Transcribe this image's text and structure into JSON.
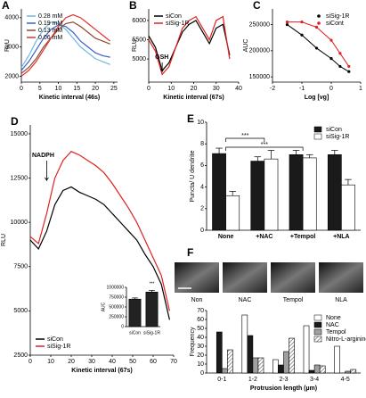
{
  "chart_data": [
    {
      "type": "line",
      "panel": "A",
      "xlabel": "Kinetic interval (46s)",
      "ylabel": "RLU",
      "x": [
        0,
        2,
        4,
        6,
        8,
        10,
        12,
        14,
        16,
        18,
        20,
        22,
        24
      ],
      "xlim": [
        0,
        26
      ],
      "xticks": [
        0,
        5,
        10,
        15,
        20,
        25
      ],
      "ylim": [
        1800,
        4300
      ],
      "yticks": [
        2000,
        3000,
        4000
      ],
      "legend": "upper left",
      "series": [
        {
          "name": "0.28 mM",
          "color": "#6cb8e6",
          "values": [
            2300,
            2700,
            3200,
            3600,
            3850,
            3800,
            3600,
            3300,
            3000,
            2800,
            2600,
            2500,
            2400
          ]
        },
        {
          "name": "0.19 mM",
          "color": "#3a5fcd",
          "values": [
            2200,
            2500,
            2900,
            3300,
            3600,
            3750,
            3700,
            3500,
            3200,
            3000,
            2800,
            2700,
            2650
          ]
        },
        {
          "name": "0.13 mM",
          "color": "#8b4a2b",
          "values": [
            2100,
            2300,
            2600,
            3000,
            3300,
            3600,
            3800,
            3850,
            3700,
            3500,
            3300,
            3200,
            3100
          ]
        },
        {
          "name": "0.06 mM",
          "color": "#e03030",
          "values": [
            2000,
            2200,
            2500,
            2900,
            3300,
            3700,
            4000,
            4100,
            4000,
            3800,
            3600,
            3400,
            3200
          ]
        }
      ]
    },
    {
      "type": "line",
      "panel": "B",
      "xlabel": "Kinetic interval (67s)",
      "ylabel": "RLU",
      "x": [
        0,
        3,
        6,
        9,
        12,
        15,
        18,
        21,
        24,
        27,
        30,
        33,
        36
      ],
      "xlim": [
        0,
        40
      ],
      "xticks": [
        0,
        10,
        20,
        30,
        40
      ],
      "ylim": [
        4400,
        6300
      ],
      "yticks": [
        5000,
        5500,
        6000
      ],
      "legend": "upper left",
      "annotations": [
        "GSH"
      ],
      "series": [
        {
          "name": "siCon",
          "color": "#000000",
          "values": [
            5600,
            5300,
            4700,
            4900,
            5300,
            5700,
            5900,
            6000,
            5700,
            5400,
            5800,
            5900,
            5100
          ]
        },
        {
          "name": "siSig-1R",
          "color": "#e02020",
          "values": [
            5500,
            5200,
            4600,
            4800,
            5300,
            5800,
            6000,
            6100,
            5800,
            5500,
            6000,
            6100,
            5000
          ]
        }
      ]
    },
    {
      "type": "scatter",
      "panel": "C",
      "xlabel": "Log [vg]",
      "ylabel": "AUC",
      "xlim": [
        -2,
        1
      ],
      "xticks": [
        -2,
        -1,
        0,
        1
      ],
      "ylim": [
        140000,
        280000
      ],
      "yticks": [
        150000,
        200000,
        250000
      ],
      "legend": "upper right",
      "series": [
        {
          "name": "siSig-1R",
          "color": "#000000",
          "x": [
            -1.5,
            -1,
            -0.5,
            0,
            0.3,
            0.6
          ],
          "values": [
            250000,
            230000,
            205000,
            185000,
            170000,
            160000
          ]
        },
        {
          "name": "siCont",
          "color": "#e02020",
          "x": [
            -1.5,
            -1,
            -0.5,
            0,
            0.3,
            0.6
          ],
          "values": [
            255000,
            255000,
            245000,
            220000,
            195000,
            170000
          ]
        }
      ]
    },
    {
      "type": "line",
      "panel": "D",
      "xlabel": "Kinetic interval (67s)",
      "ylabel": "RLU",
      "x": [
        0,
        4,
        8,
        12,
        16,
        20,
        24,
        28,
        32,
        36,
        40,
        44,
        48,
        52,
        56,
        60,
        64,
        68
      ],
      "xlim": [
        0,
        70
      ],
      "xticks": [
        0,
        10,
        20,
        30,
        40,
        50,
        60,
        70
      ],
      "ylim": [
        2500,
        15500
      ],
      "yticks": [
        2500,
        5000,
        7500,
        10000,
        12500,
        15000
      ],
      "legend": "lower left",
      "annotations": [
        "NADPH"
      ],
      "series": [
        {
          "name": "siCon",
          "color": "#000000",
          "values": [
            9000,
            8500,
            9500,
            11000,
            11800,
            12000,
            11700,
            11500,
            11300,
            11000,
            10500,
            10000,
            9500,
            9000,
            8200,
            7500,
            6500,
            4500
          ]
        },
        {
          "name": "siSig-1R",
          "color": "#e02020",
          "values": [
            9200,
            8800,
            10500,
            12500,
            13500,
            14000,
            13800,
            13500,
            13200,
            12800,
            12200,
            11500,
            10800,
            10000,
            9000,
            8000,
            7000,
            5000
          ]
        }
      ]
    },
    {
      "type": "bar",
      "ylabel": "AUC",
      "categories": [
        "siCon",
        "siSig-1R"
      ],
      "ylim": [
        0,
        1000000
      ],
      "yticks": [
        0,
        250000,
        500000,
        750000,
        1000000
      ],
      "annotations": [
        "***"
      ],
      "series": [
        {
          "name": "AUC",
          "color": "#222222",
          "values": [
            700000,
            880000
          ],
          "errors": [
            30000,
            40000
          ]
        }
      ]
    },
    {
      "type": "bar",
      "panel": "E",
      "ylabel": "Puncta/ U dendrite",
      "categories": [
        "None",
        "+NAC",
        "+Tempol",
        "+NLA"
      ],
      "ylim": [
        0,
        10
      ],
      "yticks": [
        0,
        2,
        4,
        6,
        8,
        10
      ],
      "legend": "upper right",
      "annotations": [
        "***",
        "***"
      ],
      "series": [
        {
          "name": "siCon",
          "color": "#1a1a1a",
          "values": [
            7.1,
            6.4,
            7.0,
            7.0
          ],
          "errors": [
            0.5,
            0.4,
            0.4,
            0.4
          ]
        },
        {
          "name": "siSig-1R",
          "color": "#ffffff",
          "values": [
            3.2,
            6.6,
            6.7,
            4.2
          ],
          "errors": [
            0.4,
            0.8,
            0.3,
            0.5
          ]
        }
      ]
    },
    {
      "type": "bar",
      "panel": "F",
      "ylabel": "Frequency",
      "xlabel": "Protrusion length (µm)",
      "images": [
        "Non",
        "NAC",
        "Tempol",
        "NLA"
      ],
      "categories": [
        "0-1",
        "1-2",
        "2-3",
        "3-4",
        "4-5"
      ],
      "ylim": [
        0,
        70
      ],
      "yticks": [
        0,
        10,
        20,
        30,
        40,
        50,
        60,
        70
      ],
      "legend": "upper right",
      "series": [
        {
          "name": "None",
          "color": "#ffffff",
          "values": [
            0,
            65,
            15,
            53,
            30
          ]
        },
        {
          "name": "NAC",
          "color": "#1a1a1a",
          "values": [
            46,
            42,
            9,
            3,
            0
          ]
        },
        {
          "name": "Tempol",
          "color": "#a0a0a0",
          "values": [
            5,
            17,
            24,
            9,
            2
          ]
        },
        {
          "name": "Nitro-L-arginine",
          "color": "#ffffff",
          "hatch": true,
          "values": [
            26,
            17,
            39,
            8,
            4
          ]
        }
      ]
    }
  ]
}
